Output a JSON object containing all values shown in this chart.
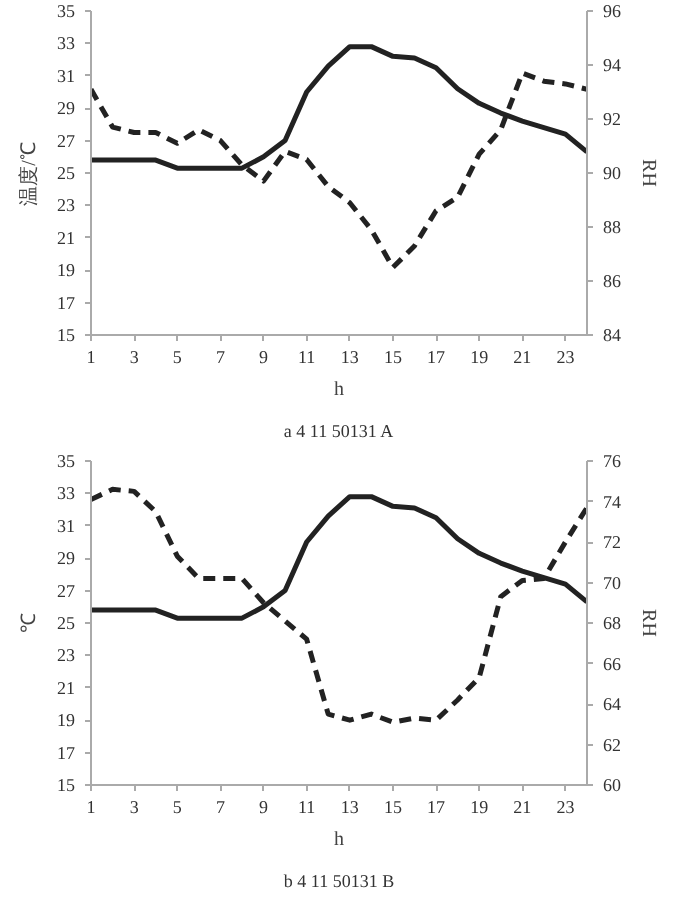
{
  "chart_data": [
    {
      "type": "line",
      "xlabel": "h",
      "ylabel": "温度/℃",
      "y2label": "RH",
      "annotations": [
        "a 4 11 50131 A"
      ],
      "x": [
        1,
        2,
        3,
        4,
        5,
        6,
        7,
        8,
        9,
        10,
        11,
        12,
        13,
        14,
        15,
        16,
        17,
        18,
        19,
        20,
        21,
        22,
        23,
        24
      ],
      "xlim": [
        1,
        24
      ],
      "xticks": [
        1,
        3,
        5,
        7,
        9,
        11,
        13,
        15,
        17,
        19,
        21,
        23
      ],
      "ylim": [
        15,
        35
      ],
      "yticks": [
        15,
        17,
        19,
        21,
        23,
        25,
        27,
        29,
        31,
        33,
        35
      ],
      "y2lim": [
        84,
        96
      ],
      "y2ticks": [
        84,
        86,
        88,
        90,
        92,
        94,
        96
      ],
      "grid": false,
      "marker": "none",
      "series": [
        {
          "color": "#222222",
          "line_style": "solid",
          "values": [
            25.8,
            25.8,
            25.8,
            25.8,
            25.3,
            25.3,
            25.3,
            25.3,
            26.0,
            27.0,
            30.0,
            31.6,
            32.8,
            32.8,
            32.2,
            32.1,
            31.5,
            30.2,
            29.3,
            28.7,
            28.2,
            27.8,
            27.4,
            26.3
          ]
        },
        {
          "color": "#222222",
          "line_style": "dashed",
          "axis": "y2",
          "values": [
            93.1,
            91.7,
            91.5,
            91.5,
            91.1,
            91.6,
            91.2,
            90.3,
            89.7,
            90.8,
            90.5,
            89.5,
            88.9,
            87.9,
            86.5,
            87.3,
            88.6,
            89.1,
            90.7,
            91.6,
            93.7,
            93.4,
            93.3,
            93.1
          ]
        }
      ]
    },
    {
      "type": "line",
      "xlabel": "h",
      "ylabel": "℃",
      "y2label": "RH",
      "annotations": [
        "b 4 11 50131 B"
      ],
      "x": [
        1,
        2,
        3,
        4,
        5,
        6,
        7,
        8,
        9,
        10,
        11,
        12,
        13,
        14,
        15,
        16,
        17,
        18,
        19,
        20,
        21,
        22,
        23,
        24
      ],
      "xlim": [
        1,
        24
      ],
      "xticks": [
        1,
        3,
        5,
        7,
        9,
        11,
        13,
        15,
        17,
        19,
        21,
        23
      ],
      "ylim": [
        15,
        35
      ],
      "yticks": [
        15,
        17,
        19,
        21,
        23,
        25,
        27,
        29,
        31,
        33,
        35
      ],
      "y2lim": [
        60,
        76
      ],
      "y2ticks": [
        60,
        62,
        64,
        66,
        68,
        70,
        72,
        74,
        76
      ],
      "grid": false,
      "marker": "none",
      "series": [
        {
          "color": "#222222",
          "line_style": "solid",
          "values": [
            25.8,
            25.8,
            25.8,
            25.8,
            25.3,
            25.3,
            25.3,
            25.3,
            26.0,
            27.0,
            30.0,
            31.6,
            32.8,
            32.8,
            32.2,
            32.1,
            31.5,
            30.2,
            29.3,
            28.7,
            28.2,
            27.8,
            27.4,
            26.3
          ]
        },
        {
          "color": "#222222",
          "line_style": "dashed",
          "axis": "y2",
          "values": [
            74.1,
            74.6,
            74.5,
            73.5,
            71.3,
            70.2,
            70.2,
            70.2,
            69.0,
            68.1,
            67.2,
            63.5,
            63.2,
            63.5,
            63.1,
            63.3,
            63.2,
            64.2,
            65.3,
            69.3,
            70.1,
            70.2,
            72.0,
            73.7
          ]
        }
      ]
    }
  ]
}
